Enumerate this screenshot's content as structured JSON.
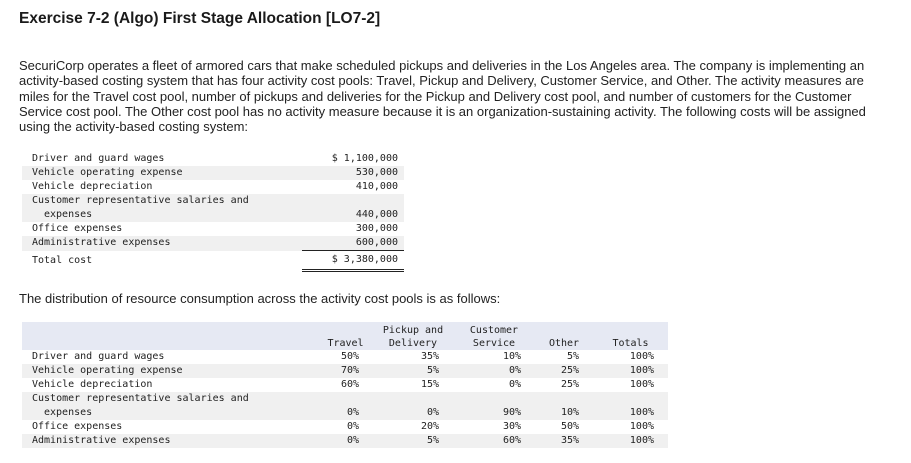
{
  "title": "Exercise 7-2 (Algo) First Stage Allocation [LO7-2]",
  "intro": "SecuriCorp operates a fleet of armored cars that make scheduled pickups and deliveries in the Los Angeles area. The company is implementing an activity-based costing system that has four activity cost pools: Travel, Pickup and Delivery, Customer Service, and Other. The activity measures are miles for the Travel cost pool, number of pickups and deliveries for the Pickup and Delivery cost pool, and number of customers for the Customer Service cost pool. The Other cost pool has no activity measure because it is an organization-sustaining activity. The following costs will be assigned using the activity-based costing system:",
  "costs": {
    "rows": [
      {
        "label": "Driver and guard wages",
        "amount": "$ 1,100,000"
      },
      {
        "label": "Vehicle operating expense",
        "amount": "530,000"
      },
      {
        "label": "Vehicle depreciation",
        "amount": "410,000"
      },
      {
        "label": "Customer representative salaries and",
        "label2": "expenses",
        "amount": "440,000"
      },
      {
        "label": "Office expenses",
        "amount": "300,000"
      },
      {
        "label": "Administrative expenses",
        "amount": "600,000"
      }
    ],
    "total_label": "Total cost",
    "total_amount": "$ 3,380,000"
  },
  "distribution_intro": "The distribution of resource consumption across the activity cost pools is as follows:",
  "distribution": {
    "headers": {
      "travel": "Travel",
      "pickup_1": "Pickup and",
      "pickup_2": "Delivery",
      "customer_1": "Customer",
      "customer_2": "Service",
      "other": "Other",
      "totals": "Totals"
    },
    "rows": [
      {
        "label": "Driver and guard wages",
        "travel": "50%",
        "pickup": "35%",
        "customer": "10%",
        "other": "5%",
        "total": "100%"
      },
      {
        "label": "Vehicle operating expense",
        "travel": "70%",
        "pickup": "5%",
        "customer": "0%",
        "other": "25%",
        "total": "100%"
      },
      {
        "label": "Vehicle depreciation",
        "travel": "60%",
        "pickup": "15%",
        "customer": "0%",
        "other": "25%",
        "total": "100%"
      },
      {
        "label": "Customer representative salaries and",
        "label2": "expenses",
        "travel": "0%",
        "pickup": "0%",
        "customer": "90%",
        "other": "10%",
        "total": "100%"
      },
      {
        "label": "Office expenses",
        "travel": "0%",
        "pickup": "20%",
        "customer": "30%",
        "other": "50%",
        "total": "100%"
      },
      {
        "label": "Administrative expenses",
        "travel": "0%",
        "pickup": "5%",
        "customer": "60%",
        "other": "35%",
        "total": "100%"
      }
    ]
  }
}
